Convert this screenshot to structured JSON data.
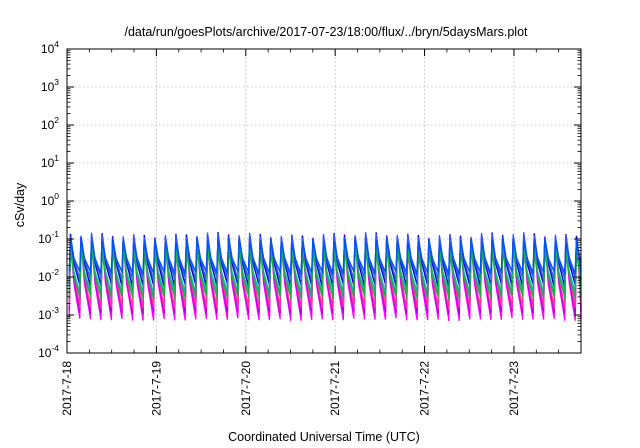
{
  "chart_data": {
    "type": "line",
    "title": "/data/run/goesPlots/archive/2017-07-23/18:00/flux/../bryn/5daysMars.plot",
    "xlabel": "Coordinated Universal Time (UTC)",
    "ylabel": "cSv/day",
    "y_scale": "log",
    "ylim": [
      0.0001,
      10000
    ],
    "x_range": [
      "2017-07-18 00:00",
      "2017-07-23 18:00"
    ],
    "x_ticks": [
      "2017-7-18",
      "2017-7-19",
      "2017-7-20",
      "2017-7-21",
      "2017-7-22",
      "2017-7-23"
    ],
    "y_ticks": [
      {
        "base": "10",
        "exp": "-4"
      },
      {
        "base": "10",
        "exp": "-3"
      },
      {
        "base": "10",
        "exp": "-2"
      },
      {
        "base": "10",
        "exp": "-1"
      },
      {
        "base": "10",
        "exp": "0"
      },
      {
        "base": "10",
        "exp": "1"
      },
      {
        "base": "10",
        "exp": "2"
      },
      {
        "base": "10",
        "exp": "3"
      },
      {
        "base": "10",
        "exp": "4"
      }
    ],
    "grid": true,
    "legend": "none",
    "cycle_hours": 2.83,
    "series": [
      {
        "color": "#ff00ff",
        "peak": 0.09,
        "trough": 0.0008
      },
      {
        "color": "#aa00ee",
        "peak": 0.1,
        "trough": 0.0012
      },
      {
        "color": "#ff3399",
        "peak": 0.11,
        "trough": 0.0016
      },
      {
        "color": "#0000cc",
        "peak": 0.12,
        "trough": 0.006
      },
      {
        "color": "#3355ff",
        "peak": 0.12,
        "trough": 0.009
      },
      {
        "color": "#00bbbb",
        "peak": 0.06,
        "trough": 0.004
      },
      {
        "color": "#22aa44",
        "peak": 0.05,
        "trough": 0.003
      },
      {
        "color": "#0055ee",
        "peak": 0.09,
        "trough": 0.013
      }
    ]
  }
}
